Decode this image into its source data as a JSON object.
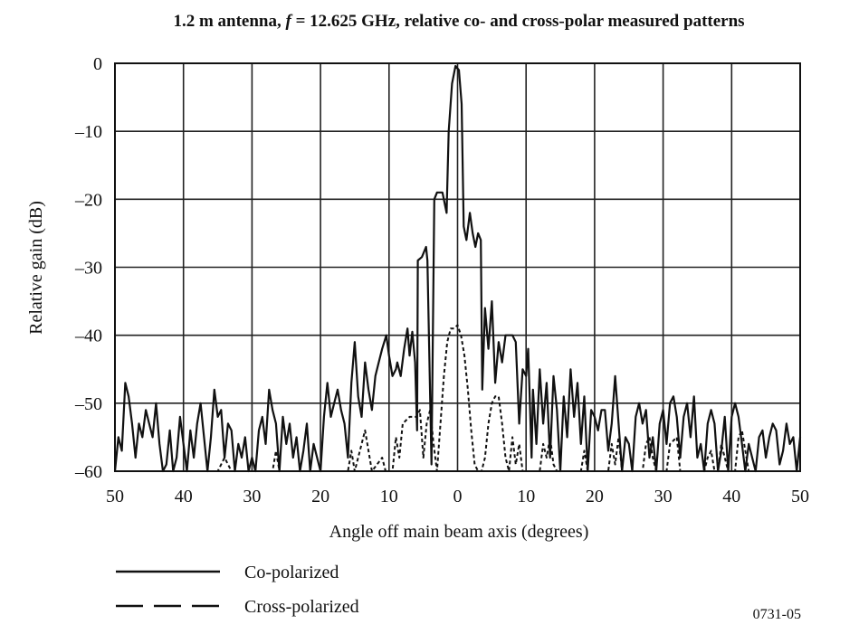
{
  "chart_data": {
    "type": "line",
    "title_parts": [
      "1.2 m antenna, ",
      "f",
      " = 12.625 GHz, relative co- and cross-polar measured patterns"
    ],
    "xlabel": "Angle off main beam axis (degrees)",
    "ylabel": "Relative gain (dB)",
    "xlim": [
      -50,
      50
    ],
    "ylim": [
      -60,
      0
    ],
    "x_ticks": [
      -50,
      -40,
      -30,
      -20,
      -10,
      0,
      10,
      20,
      30,
      40,
      50
    ],
    "x_tick_labels": [
      "50",
      "40",
      "30",
      "20",
      "10",
      "0",
      "10",
      "20",
      "30",
      "40",
      "50"
    ],
    "y_ticks": [
      0,
      -10,
      -20,
      -30,
      -40,
      -50,
      -60
    ],
    "y_tick_labels": [
      "0",
      "–10",
      "–20",
      "–30",
      "–40",
      "–50",
      "–60"
    ],
    "grid": true,
    "legend_placement": "bottom-left",
    "figure_id": "0731-05",
    "series": [
      {
        "name": "Co-polarized",
        "style": "solid",
        "color": "#111111",
        "points": [
          [
            -50,
            -60
          ],
          [
            -49.5,
            -55
          ],
          [
            -49,
            -57
          ],
          [
            -48.5,
            -47
          ],
          [
            -48,
            -49
          ],
          [
            -47.5,
            -53
          ],
          [
            -47,
            -58
          ],
          [
            -46.5,
            -53
          ],
          [
            -46,
            -55
          ],
          [
            -45.5,
            -51
          ],
          [
            -45,
            -53
          ],
          [
            -44.5,
            -55
          ],
          [
            -44,
            -50
          ],
          [
            -43.5,
            -56
          ],
          [
            -43,
            -60
          ],
          [
            -42.5,
            -59
          ],
          [
            -42,
            -54
          ],
          [
            -41.5,
            -60
          ],
          [
            -41,
            -58
          ],
          [
            -40.5,
            -52
          ],
          [
            -40,
            -56
          ],
          [
            -39.5,
            -60
          ],
          [
            -39,
            -54
          ],
          [
            -38.5,
            -58
          ],
          [
            -38,
            -53
          ],
          [
            -37.5,
            -50
          ],
          [
            -37,
            -55
          ],
          [
            -36.5,
            -60
          ],
          [
            -36,
            -55
          ],
          [
            -35.5,
            -48
          ],
          [
            -35,
            -52
          ],
          [
            -34.5,
            -51
          ],
          [
            -34,
            -58
          ],
          [
            -33.5,
            -53
          ],
          [
            -33,
            -54
          ],
          [
            -32.5,
            -60
          ],
          [
            -32,
            -56
          ],
          [
            -31.5,
            -58
          ],
          [
            -31,
            -55
          ],
          [
            -30.5,
            -60
          ],
          [
            -30,
            -58
          ],
          [
            -29.5,
            -60
          ],
          [
            -29,
            -54
          ],
          [
            -28.5,
            -52
          ],
          [
            -28,
            -56
          ],
          [
            -27.5,
            -48
          ],
          [
            -27,
            -51
          ],
          [
            -26.5,
            -53
          ],
          [
            -26,
            -60
          ],
          [
            -25.5,
            -52
          ],
          [
            -25,
            -56
          ],
          [
            -24.5,
            -53
          ],
          [
            -24,
            -58
          ],
          [
            -23.5,
            -55
          ],
          [
            -23,
            -60
          ],
          [
            -22.5,
            -57
          ],
          [
            -22,
            -53
          ],
          [
            -21.5,
            -60
          ],
          [
            -21,
            -56
          ],
          [
            -20,
            -60
          ],
          [
            -19.5,
            -52
          ],
          [
            -19,
            -47
          ],
          [
            -18.5,
            -52
          ],
          [
            -18,
            -50
          ],
          [
            -17.5,
            -48
          ],
          [
            -17,
            -51
          ],
          [
            -16.5,
            -53
          ],
          [
            -16,
            -58
          ],
          [
            -15.5,
            -47
          ],
          [
            -15,
            -41
          ],
          [
            -14.5,
            -49
          ],
          [
            -14,
            -52
          ],
          [
            -13.5,
            -44
          ],
          [
            -13,
            -48
          ],
          [
            -12.5,
            -51
          ],
          [
            -12,
            -46
          ],
          [
            -11.5,
            -44
          ],
          [
            -11,
            -42
          ],
          [
            -10.4,
            -40
          ],
          [
            -10,
            -43
          ],
          [
            -9.5,
            -46
          ],
          [
            -9,
            -45
          ],
          [
            -8.8,
            -44
          ],
          [
            -8.3,
            -46
          ],
          [
            -7.8,
            -42
          ],
          [
            -7.3,
            -39
          ],
          [
            -7,
            -43
          ],
          [
            -6.6,
            -39.5
          ],
          [
            -6.2,
            -44
          ],
          [
            -5.9,
            -54
          ],
          [
            -5.8,
            -29
          ],
          [
            -5.2,
            -28.5
          ],
          [
            -4.6,
            -27
          ],
          [
            -4.4,
            -29
          ],
          [
            -3.8,
            -59
          ],
          [
            -3.4,
            -20
          ],
          [
            -3,
            -19
          ],
          [
            -2.2,
            -19
          ],
          [
            -1.6,
            -22
          ],
          [
            -1.3,
            -10
          ],
          [
            -0.8,
            -3
          ],
          [
            -0.3,
            -0.4
          ],
          [
            0.2,
            -1
          ],
          [
            0.6,
            -6
          ],
          [
            0.9,
            -24
          ],
          [
            1.3,
            -26
          ],
          [
            1.8,
            -22
          ],
          [
            2.2,
            -25
          ],
          [
            2.6,
            -27
          ],
          [
            3,
            -25
          ],
          [
            3.4,
            -26
          ],
          [
            3.6,
            -48
          ],
          [
            4,
            -36
          ],
          [
            4.5,
            -42
          ],
          [
            5,
            -35
          ],
          [
            5.5,
            -47
          ],
          [
            6,
            -41
          ],
          [
            6.5,
            -44
          ],
          [
            7,
            -40
          ],
          [
            8,
            -40
          ],
          [
            8.5,
            -41
          ],
          [
            9,
            -53
          ],
          [
            9.5,
            -45
          ],
          [
            10,
            -46
          ],
          [
            10.3,
            -42
          ],
          [
            10.8,
            -58
          ],
          [
            11,
            -48
          ],
          [
            11.5,
            -56
          ],
          [
            12,
            -45
          ],
          [
            12.5,
            -53
          ],
          [
            13,
            -47
          ],
          [
            13.5,
            -58
          ],
          [
            14,
            -46
          ],
          [
            14.5,
            -51
          ],
          [
            15,
            -60
          ],
          [
            15.5,
            -49
          ],
          [
            16,
            -55
          ],
          [
            16.5,
            -45
          ],
          [
            17,
            -52
          ],
          [
            17.5,
            -47
          ],
          [
            18,
            -56
          ],
          [
            18.5,
            -49
          ],
          [
            19,
            -60
          ],
          [
            19.5,
            -51
          ],
          [
            20,
            -52
          ],
          [
            20.5,
            -54
          ],
          [
            21,
            -51
          ],
          [
            21.5,
            -51
          ],
          [
            22,
            -57
          ],
          [
            22.5,
            -53
          ],
          [
            23,
            -46
          ],
          [
            23.5,
            -53
          ],
          [
            24,
            -60
          ],
          [
            24.5,
            -55
          ],
          [
            25,
            -56
          ],
          [
            25.5,
            -60
          ],
          [
            26,
            -52
          ],
          [
            26.5,
            -50
          ],
          [
            27,
            -53
          ],
          [
            27.5,
            -51
          ],
          [
            28,
            -58
          ],
          [
            28.5,
            -55
          ],
          [
            29,
            -60
          ],
          [
            29.5,
            -53
          ],
          [
            30,
            -51
          ],
          [
            30.5,
            -56
          ],
          [
            31,
            -50
          ],
          [
            31.5,
            -49
          ],
          [
            32,
            -52
          ],
          [
            32.5,
            -58
          ],
          [
            33,
            -52
          ],
          [
            33.5,
            -50
          ],
          [
            34,
            -55
          ],
          [
            34.5,
            -49
          ],
          [
            35,
            -58
          ],
          [
            35.5,
            -56
          ],
          [
            36,
            -60
          ],
          [
            36.5,
            -53
          ],
          [
            37,
            -51
          ],
          [
            37.5,
            -53
          ],
          [
            38,
            -60
          ],
          [
            38.5,
            -57
          ],
          [
            39,
            -52
          ],
          [
            39.5,
            -60
          ],
          [
            40,
            -52
          ],
          [
            40.5,
            -50
          ],
          [
            41,
            -52
          ],
          [
            41.5,
            -56
          ],
          [
            42,
            -60
          ],
          [
            42.5,
            -56
          ],
          [
            43,
            -58
          ],
          [
            43.5,
            -60
          ],
          [
            44,
            -55
          ],
          [
            44.5,
            -54
          ],
          [
            45,
            -58
          ],
          [
            45.5,
            -55
          ],
          [
            46,
            -53
          ],
          [
            46.5,
            -54
          ],
          [
            47,
            -59
          ],
          [
            47.5,
            -57
          ],
          [
            48,
            -53
          ],
          [
            48.5,
            -56
          ],
          [
            49,
            -55
          ],
          [
            49.5,
            -60
          ],
          [
            50,
            -55
          ]
        ]
      },
      {
        "name": "Cross-polarized",
        "style": "dashed",
        "color": "#111111",
        "points": [
          [
            -50,
            -60
          ],
          [
            -35,
            -60
          ],
          [
            -34,
            -58
          ],
          [
            -33,
            -60
          ],
          [
            -27,
            -60
          ],
          [
            -26.5,
            -57
          ],
          [
            -26,
            -60
          ],
          [
            -16,
            -60
          ],
          [
            -15.5,
            -57
          ],
          [
            -15,
            -60
          ],
          [
            -14,
            -56
          ],
          [
            -13.5,
            -54
          ],
          [
            -13,
            -57
          ],
          [
            -12.5,
            -60
          ],
          [
            -11,
            -58
          ],
          [
            -10.5,
            -60
          ],
          [
            -9.5,
            -60
          ],
          [
            -9,
            -55
          ],
          [
            -8.5,
            -58
          ],
          [
            -8,
            -53
          ],
          [
            -7,
            -52
          ],
          [
            -6,
            -52
          ],
          [
            -5.5,
            -51
          ],
          [
            -5,
            -58
          ],
          [
            -4.5,
            -53
          ],
          [
            -4,
            -51
          ],
          [
            -3.5,
            -56
          ],
          [
            -3,
            -60
          ],
          [
            -2.5,
            -53
          ],
          [
            -2,
            -46
          ],
          [
            -1.5,
            -41
          ],
          [
            -1,
            -39
          ],
          [
            -0.5,
            -39
          ],
          [
            0,
            -38.5
          ],
          [
            0.5,
            -40
          ],
          [
            1,
            -43
          ],
          [
            1.5,
            -48
          ],
          [
            2,
            -54
          ],
          [
            2.5,
            -59
          ],
          [
            3,
            -60
          ],
          [
            3.5,
            -60
          ],
          [
            4,
            -58
          ],
          [
            4.5,
            -53
          ],
          [
            5,
            -50
          ],
          [
            5.5,
            -49
          ],
          [
            6,
            -49
          ],
          [
            6.5,
            -53
          ],
          [
            7,
            -58
          ],
          [
            7.5,
            -60
          ],
          [
            8,
            -55
          ],
          [
            8.5,
            -59
          ],
          [
            9,
            -56
          ],
          [
            9.5,
            -60
          ],
          [
            12,
            -60
          ],
          [
            12.5,
            -56
          ],
          [
            13,
            -58
          ],
          [
            13.5,
            -55
          ],
          [
            14,
            -59
          ],
          [
            14.5,
            -60
          ],
          [
            18,
            -60
          ],
          [
            18.5,
            -57
          ],
          [
            19,
            -60
          ],
          [
            22,
            -60
          ],
          [
            22.5,
            -56
          ],
          [
            23,
            -59
          ],
          [
            23.5,
            -55
          ],
          [
            24,
            -60
          ],
          [
            27,
            -60
          ],
          [
            27.5,
            -56
          ],
          [
            28,
            -55
          ],
          [
            28.5,
            -58
          ],
          [
            29,
            -60
          ],
          [
            30.5,
            -60
          ],
          [
            31,
            -56
          ],
          [
            32,
            -55
          ],
          [
            32.5,
            -60
          ],
          [
            36,
            -60
          ],
          [
            36.5,
            -58
          ],
          [
            37,
            -57
          ],
          [
            37.5,
            -60
          ],
          [
            38,
            -60
          ],
          [
            38.5,
            -56
          ],
          [
            39,
            -58
          ],
          [
            39.5,
            -60
          ],
          [
            40.5,
            -60
          ],
          [
            41,
            -55
          ],
          [
            41.5,
            -54
          ],
          [
            42,
            -57
          ],
          [
            42.5,
            -60
          ],
          [
            50,
            -60
          ]
        ]
      }
    ]
  }
}
